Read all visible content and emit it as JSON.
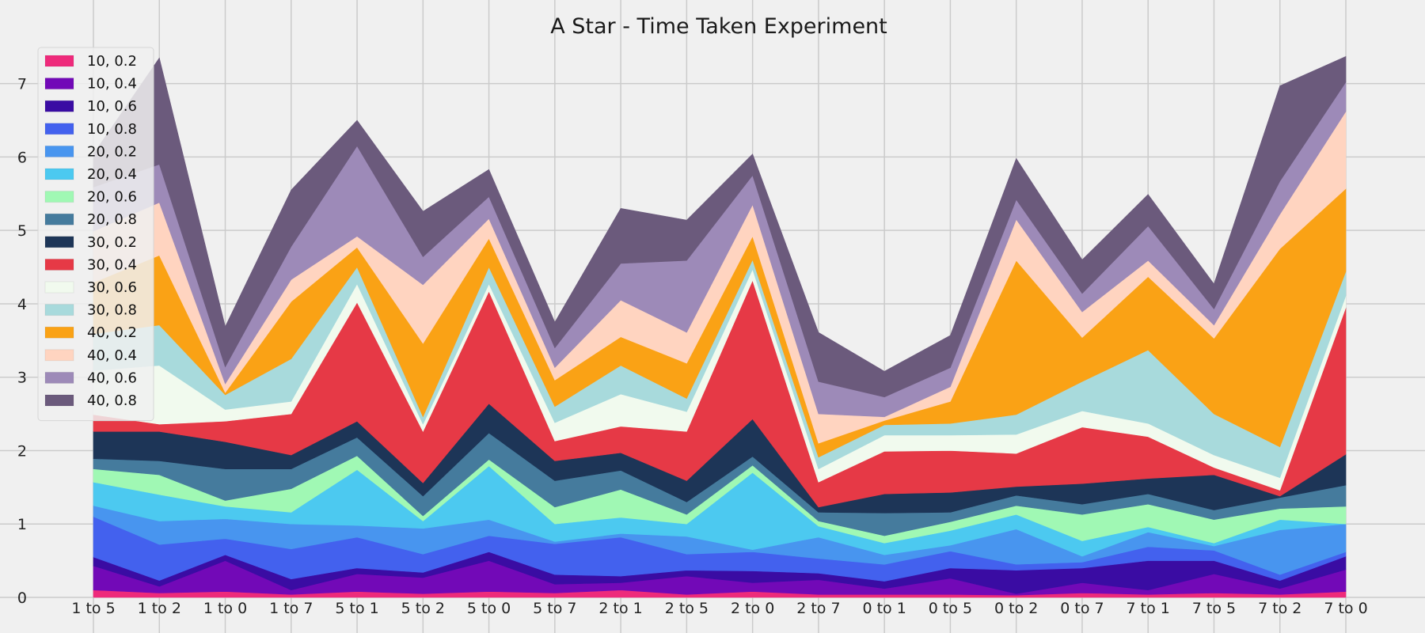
{
  "chart_data": {
    "type": "area",
    "stacked": true,
    "title": "A Star - Time Taken Experiment",
    "xlabel": "",
    "ylabel": "",
    "ylim": [
      0,
      7.6
    ],
    "yticks": [
      0,
      1,
      2,
      3,
      4,
      5,
      6,
      7
    ],
    "grid": true,
    "legend_position": "top-left",
    "categories": [
      "1 to 5",
      "1 to 2",
      "1 to 0",
      "1 to 7",
      "5 to 1",
      "5 to 2",
      "5 to 0",
      "5 to 7",
      "2 to 1",
      "2 to 5",
      "2 to 0",
      "2 to 7",
      "0 to 1",
      "0 to 5",
      "0 to 2",
      "0 to 7",
      "7 to 1",
      "7 to 5",
      "7 to 2",
      "7 to 0"
    ],
    "series": [
      {
        "name": "10, 0.2",
        "color": "#ee2a7b",
        "values": [
          0.1,
          0.06,
          0.08,
          0.04,
          0.08,
          0.05,
          0.08,
          0.06,
          0.1,
          0.04,
          0.08,
          0.04,
          0.04,
          0.04,
          0.03,
          0.06,
          0.04,
          0.06,
          0.04,
          0.08
        ]
      },
      {
        "name": "10, 0.4",
        "color": "#7209b7",
        "values": [
          0.33,
          0.09,
          0.42,
          0.06,
          0.24,
          0.22,
          0.42,
          0.12,
          0.1,
          0.25,
          0.12,
          0.2,
          0.08,
          0.22,
          0.02,
          0.14,
          0.06,
          0.26,
          0.08,
          0.3
        ]
      },
      {
        "name": "10, 0.6",
        "color": "#3a0ca3",
        "values": [
          0.12,
          0.08,
          0.08,
          0.15,
          0.08,
          0.07,
          0.12,
          0.13,
          0.09,
          0.08,
          0.16,
          0.09,
          0.1,
          0.14,
          0.32,
          0.2,
          0.4,
          0.18,
          0.11,
          0.18
        ]
      },
      {
        "name": "10, 0.8",
        "color": "#4361ee",
        "values": [
          0.55,
          0.49,
          0.22,
          0.41,
          0.42,
          0.25,
          0.22,
          0.42,
          0.53,
          0.22,
          0.26,
          0.2,
          0.23,
          0.23,
          0.08,
          0.08,
          0.19,
          0.14,
          0.08,
          0.06
        ]
      },
      {
        "name": "20, 0.2",
        "color": "#4895ef",
        "values": [
          0.15,
          0.32,
          0.27,
          0.34,
          0.16,
          0.35,
          0.22,
          0.03,
          0.05,
          0.24,
          0.03,
          0.29,
          0.13,
          0.08,
          0.48,
          0.08,
          0.2,
          0.06,
          0.61,
          0.38
        ]
      },
      {
        "name": "20, 0.4",
        "color": "#4cc9f0",
        "values": [
          0.32,
          0.36,
          0.17,
          0.16,
          0.76,
          0.1,
          0.73,
          0.24,
          0.22,
          0.17,
          1.05,
          0.15,
          0.16,
          0.2,
          0.2,
          0.21,
          0.07,
          0.04,
          0.14,
          0.0
        ]
      },
      {
        "name": "20, 0.6",
        "color": "#a0f8b4",
        "values": [
          0.18,
          0.27,
          0.08,
          0.32,
          0.19,
          0.07,
          0.09,
          0.23,
          0.38,
          0.13,
          0.1,
          0.07,
          0.1,
          0.12,
          0.12,
          0.36,
          0.31,
          0.32,
          0.15,
          0.24
        ]
      },
      {
        "name": "20, 0.8",
        "color": "#457b9d",
        "values": [
          0.14,
          0.19,
          0.43,
          0.27,
          0.25,
          0.27,
          0.36,
          0.36,
          0.26,
          0.17,
          0.12,
          0.12,
          0.31,
          0.13,
          0.14,
          0.14,
          0.14,
          0.13,
          0.15,
          0.29
        ]
      },
      {
        "name": "30, 0.2",
        "color": "#1d3557",
        "values": [
          0.37,
          0.4,
          0.37,
          0.19,
          0.22,
          0.18,
          0.4,
          0.27,
          0.24,
          0.29,
          0.51,
          0.07,
          0.26,
          0.27,
          0.12,
          0.28,
          0.21,
          0.48,
          0.02,
          0.42
        ]
      },
      {
        "name": "30, 0.4",
        "color": "#e63946",
        "values": [
          0.23,
          0.1,
          0.28,
          0.56,
          1.62,
          0.7,
          1.53,
          0.27,
          0.36,
          0.67,
          1.89,
          0.34,
          0.58,
          0.57,
          0.45,
          0.77,
          0.57,
          0.1,
          0.08,
          2.0
        ]
      },
      {
        "name": "30, 0.6",
        "color": "#f1faee",
        "values": [
          0.6,
          0.8,
          0.16,
          0.17,
          0.25,
          0.1,
          0.1,
          0.25,
          0.44,
          0.27,
          0.15,
          0.18,
          0.22,
          0.21,
          0.26,
          0.22,
          0.18,
          0.17,
          0.17,
          0.16
        ]
      },
      {
        "name": "30, 0.8",
        "color": "#a8dadc",
        "values": [
          0.5,
          0.55,
          0.2,
          0.58,
          0.23,
          0.1,
          0.23,
          0.22,
          0.39,
          0.18,
          0.13,
          0.16,
          0.14,
          0.16,
          0.27,
          0.4,
          1.0,
          0.56,
          0.42,
          0.33
        ]
      },
      {
        "name": "40, 0.2",
        "color": "#faa215",
        "values": [
          0.7,
          0.95,
          0.03,
          0.78,
          0.27,
          1.0,
          0.39,
          0.36,
          0.39,
          0.48,
          0.32,
          0.19,
          0.06,
          0.3,
          2.1,
          0.6,
          1.0,
          1.03,
          2.7,
          1.13
        ]
      },
      {
        "name": "40, 0.4",
        "color": "#ffd4c0",
        "values": [
          0.7,
          0.72,
          0.12,
          0.3,
          0.15,
          0.8,
          0.27,
          0.17,
          0.5,
          0.42,
          0.43,
          0.4,
          0.05,
          0.2,
          0.56,
          0.35,
          0.22,
          0.18,
          0.47,
          1.05
        ]
      },
      {
        "name": "40, 0.6",
        "color": "#9d8ab8",
        "values": [
          0.6,
          0.52,
          0.23,
          0.45,
          1.23,
          0.38,
          0.3,
          0.27,
          0.5,
          0.98,
          0.4,
          0.44,
          0.27,
          0.26,
          0.27,
          0.25,
          0.47,
          0.22,
          0.45,
          0.4
        ]
      },
      {
        "name": "40, 0.8",
        "color": "#6b5a7c",
        "values": [
          0.45,
          1.45,
          0.55,
          0.77,
          0.35,
          0.62,
          0.37,
          0.35,
          0.75,
          0.55,
          0.29,
          0.67,
          0.35,
          0.44,
          0.56,
          0.46,
          0.43,
          0.34,
          1.3,
          0.35
        ]
      }
    ]
  }
}
